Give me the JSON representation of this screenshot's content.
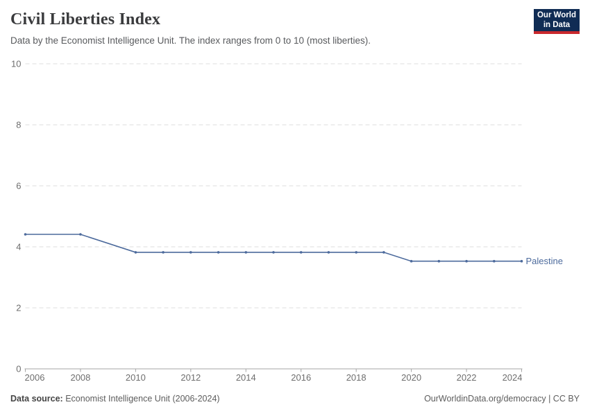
{
  "header": {
    "title": "Civil Liberties Index",
    "subtitle": "Data by the Economist Intelligence Unit. The index ranges from 0 to 10 (most liberties).",
    "logo": {
      "line1": "Our World",
      "line2": "in Data"
    }
  },
  "chart_data": {
    "type": "line",
    "title": "Civil Liberties Index",
    "subtitle": "Data by the Economist Intelligence Unit. The index ranges from 0 to 10 (most liberties).",
    "x": [
      2006,
      2008,
      2010,
      2011,
      2012,
      2013,
      2014,
      2015,
      2016,
      2017,
      2018,
      2019,
      2020,
      2021,
      2022,
      2023,
      2024
    ],
    "series": [
      {
        "name": "Palestine",
        "color": "#4C6A9C",
        "values": [
          4.41,
          4.41,
          3.82,
          3.82,
          3.82,
          3.82,
          3.82,
          3.82,
          3.82,
          3.82,
          3.82,
          3.82,
          3.53,
          3.53,
          3.53,
          3.53,
          3.53
        ]
      }
    ],
    "xlim": [
      2006,
      2024
    ],
    "ylim": [
      0,
      10
    ],
    "xticks": [
      2006,
      2008,
      2010,
      2012,
      2014,
      2016,
      2018,
      2020,
      2022,
      2024
    ],
    "yticks": [
      0,
      2,
      4,
      6,
      8,
      10
    ],
    "grid": "horizontal-dashed",
    "legend_position": "line-end-label"
  },
  "footer": {
    "source_label": "Data source:",
    "source_text": "Economist Intelligence Unit (2006-2024)",
    "url": "OurWorldinData.org/democracy",
    "license": " | CC BY"
  },
  "colors": {
    "accent_line": "#4C6A9C",
    "logo_navy": "#102C54",
    "logo_red": "#C9282D",
    "grid": "#DEDEDE",
    "axis": "#A5A5A5",
    "tick_text": "#6E6E6E"
  }
}
